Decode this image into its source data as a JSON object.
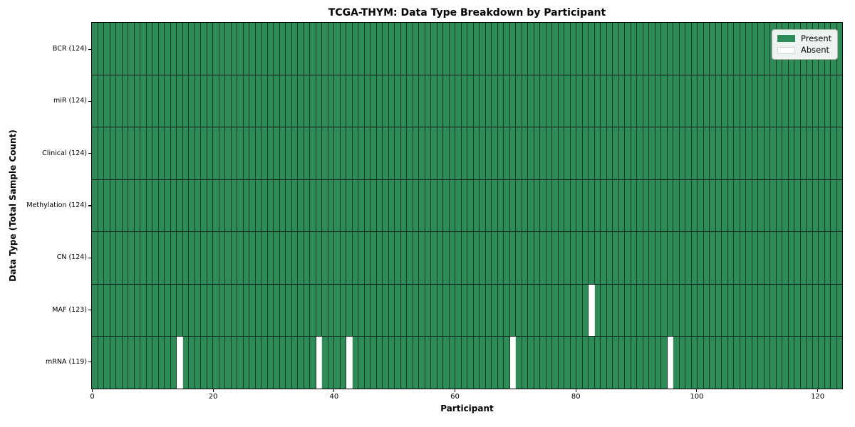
{
  "chart_data": {
    "type": "heatmap",
    "title": "TCGA-THYM: Data Type Breakdown by Participant",
    "xlabel": "Participant",
    "ylabel": "Data Type (Total Sample Count)",
    "n_participants": 124,
    "x_ticks": [
      0,
      20,
      40,
      60,
      80,
      100,
      120
    ],
    "xlim": [
      0,
      124
    ],
    "rows": [
      {
        "label": "BCR (124)",
        "data_type": "BCR",
        "total": 124,
        "absent_participants": []
      },
      {
        "label": "miR (124)",
        "data_type": "miR",
        "total": 124,
        "absent_participants": []
      },
      {
        "label": "Clinical (124)",
        "data_type": "Clinical",
        "total": 124,
        "absent_participants": []
      },
      {
        "label": "Methylation (124)",
        "data_type": "Methylation",
        "total": 124,
        "absent_participants": []
      },
      {
        "label": "CN (124)",
        "data_type": "CN",
        "total": 124,
        "absent_participants": []
      },
      {
        "label": "MAF (123)",
        "data_type": "MAF",
        "total": 123,
        "absent_participants": [
          82
        ]
      },
      {
        "label": "mRNA (119)",
        "data_type": "mRNA",
        "total": 119,
        "absent_participants": [
          14,
          37,
          42,
          69,
          95
        ]
      }
    ],
    "legend": [
      {
        "label": "Present",
        "color": "#2e8b57"
      },
      {
        "label": "Absent",
        "color": "#ffffff"
      }
    ],
    "legend_position": "upper right",
    "grid": "cell-edges",
    "colors": {
      "present": "#2e8b57",
      "absent": "#ffffff",
      "cell_edge": "rgba(0,0,0,0.58)",
      "row_edge": "rgba(0,0,0,0.78)",
      "spine": "#000000",
      "legend_bg": "#edf3ee"
    }
  }
}
